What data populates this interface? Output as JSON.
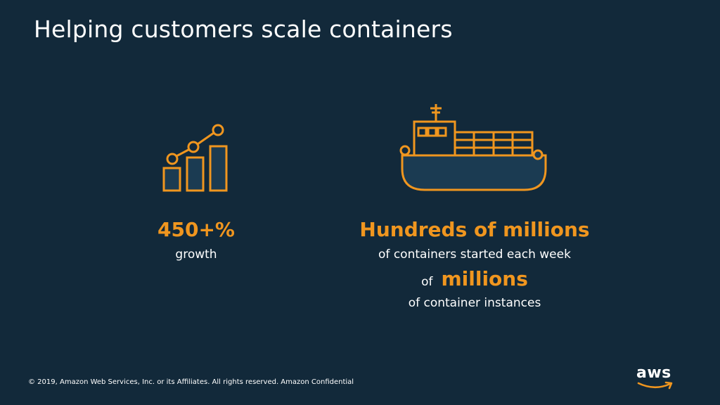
{
  "slide": {
    "title": "Helping customers scale containers"
  },
  "stats": {
    "growth": {
      "value": "450+%",
      "caption": "growth"
    },
    "containers": {
      "value": "Hundreds of millions",
      "caption": "of containers started each week"
    },
    "instances": {
      "prefix": "of",
      "value": "millions",
      "caption": "of container instances"
    }
  },
  "footer": {
    "copyright": "© 2019, Amazon Web Services, Inc. or its Affiliates. All rights reserved. Amazon Confidential"
  },
  "logo": {
    "text": "aws"
  },
  "icons": {
    "chart": "growth-chart-icon",
    "ship": "container-ship-icon"
  },
  "colors": {
    "background": "#12293a",
    "accent": "#f0961f",
    "text": "#ffffff"
  }
}
